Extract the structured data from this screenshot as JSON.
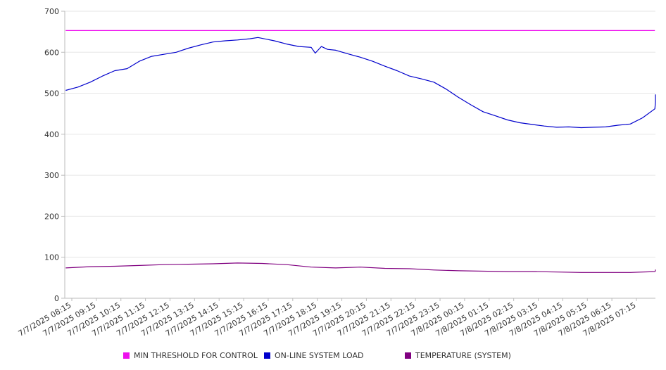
{
  "chart_data": {
    "type": "line",
    "title": "",
    "xlabel": "",
    "ylabel": "",
    "ylim": [
      0,
      700
    ],
    "yticks": [
      0,
      100,
      200,
      300,
      400,
      500,
      600,
      700
    ],
    "grid": true,
    "legend_position": "bottom",
    "x_tick_labels": [
      "7/7/2025 08:15",
      "7/7/2025 09:15",
      "7/7/2025 10:15",
      "7/7/2025 11:15",
      "7/7/2025 12:15",
      "7/7/2025 13:15",
      "7/7/2025 14:15",
      "7/7/2025 15:15",
      "7/7/2025 16:15",
      "7/7/2025 17:15",
      "7/7/2025 18:15",
      "7/7/2025 19:15",
      "7/7/2025 20:15",
      "7/7/2025 21:15",
      "7/7/2025 22:15",
      "7/7/2025 23:15",
      "7/8/2025 00:15",
      "7/8/2025 01:15",
      "7/8/2025 02:15",
      "7/8/2025 03:15",
      "7/8/2025 04:15",
      "7/8/2025 05:15",
      "7/8/2025 06:15",
      "7/8/2025 07:15"
    ],
    "x_start": "7/7/2025 08:00",
    "x_end": "7/8/2025 08:00",
    "series": [
      {
        "name": "MIN THRESHOLD FOR CONTROL",
        "color": "#ee11ee",
        "points": [
          [
            "7/7/2025 08:00",
            653
          ],
          [
            "7/8/2025 08:00",
            653
          ]
        ]
      },
      {
        "name": "ON-LINE SYSTEM LOAD",
        "color": "#0000cc",
        "points": [
          [
            "7/7/2025 08:00",
            507
          ],
          [
            "7/7/2025 08:30",
            515
          ],
          [
            "7/7/2025 09:00",
            527
          ],
          [
            "7/7/2025 09:30",
            542
          ],
          [
            "7/7/2025 10:00",
            555
          ],
          [
            "7/7/2025 10:30",
            560
          ],
          [
            "7/7/2025 11:00",
            578
          ],
          [
            "7/7/2025 11:30",
            590
          ],
          [
            "7/7/2025 12:00",
            595
          ],
          [
            "7/7/2025 12:30",
            600
          ],
          [
            "7/7/2025 13:00",
            610
          ],
          [
            "7/7/2025 13:30",
            618
          ],
          [
            "7/7/2025 14:00",
            625
          ],
          [
            "7/7/2025 14:30",
            628
          ],
          [
            "7/7/2025 15:00",
            630
          ],
          [
            "7/7/2025 15:30",
            633
          ],
          [
            "7/7/2025 15:50",
            636
          ],
          [
            "7/7/2025 16:30",
            628
          ],
          [
            "7/7/2025 17:00",
            620
          ],
          [
            "7/7/2025 17:30",
            614
          ],
          [
            "7/7/2025 18:00",
            612
          ],
          [
            "7/7/2025 18:10",
            598
          ],
          [
            "7/7/2025 18:25",
            614
          ],
          [
            "7/7/2025 18:40",
            607
          ],
          [
            "7/7/2025 19:00",
            605
          ],
          [
            "7/7/2025 19:30",
            596
          ],
          [
            "7/7/2025 20:00",
            588
          ],
          [
            "7/7/2025 20:30",
            578
          ],
          [
            "7/7/2025 21:00",
            566
          ],
          [
            "7/7/2025 21:30",
            555
          ],
          [
            "7/7/2025 22:00",
            542
          ],
          [
            "7/7/2025 22:30",
            535
          ],
          [
            "7/7/2025 23:00",
            527
          ],
          [
            "7/7/2025 23:30",
            510
          ],
          [
            "7/8/2025 00:00",
            490
          ],
          [
            "7/8/2025 00:30",
            472
          ],
          [
            "7/8/2025 01:00",
            455
          ],
          [
            "7/8/2025 01:30",
            445
          ],
          [
            "7/8/2025 02:00",
            435
          ],
          [
            "7/8/2025 02:30",
            428
          ],
          [
            "7/8/2025 03:00",
            424
          ],
          [
            "7/8/2025 03:30",
            420
          ],
          [
            "7/8/2025 04:00",
            417
          ],
          [
            "7/8/2025 04:30",
            418
          ],
          [
            "7/8/2025 05:00",
            416
          ],
          [
            "7/8/2025 05:30",
            417
          ],
          [
            "7/8/2025 06:00",
            418
          ],
          [
            "7/8/2025 06:30",
            422
          ],
          [
            "7/8/2025 07:00",
            425
          ],
          [
            "7/8/2025 07:30",
            440
          ],
          [
            "7/8/2025 08:00",
            462
          ],
          [
            "7/8/2025 08:30",
            478
          ],
          [
            "7/8/2025 09:00",
            488
          ],
          [
            "7/8/2025 09:20",
            497
          ]
        ]
      },
      {
        "name": "TEMPERATURE (SYSTEM)",
        "color": "#800080",
        "points": [
          [
            "7/7/2025 08:00",
            74
          ],
          [
            "7/7/2025 09:00",
            77
          ],
          [
            "7/7/2025 10:00",
            78
          ],
          [
            "7/7/2025 11:00",
            80
          ],
          [
            "7/7/2025 12:00",
            82
          ],
          [
            "7/7/2025 13:00",
            83
          ],
          [
            "7/7/2025 14:00",
            84
          ],
          [
            "7/7/2025 15:00",
            86
          ],
          [
            "7/7/2025 16:00",
            85
          ],
          [
            "7/7/2025 17:00",
            82
          ],
          [
            "7/7/2025 18:00",
            76
          ],
          [
            "7/7/2025 19:00",
            74
          ],
          [
            "7/7/2025 20:00",
            76
          ],
          [
            "7/7/2025 21:00",
            73
          ],
          [
            "7/7/2025 22:00",
            72
          ],
          [
            "7/7/2025 23:00",
            69
          ],
          [
            "7/8/2025 00:00",
            67
          ],
          [
            "7/8/2025 01:00",
            66
          ],
          [
            "7/8/2025 02:00",
            65
          ],
          [
            "7/8/2025 03:00",
            65
          ],
          [
            "7/8/2025 04:00",
            64
          ],
          [
            "7/8/2025 05:00",
            63
          ],
          [
            "7/8/2025 06:00",
            63
          ],
          [
            "7/8/2025 07:00",
            63
          ],
          [
            "7/8/2025 08:00",
            65
          ],
          [
            "7/8/2025 08:30",
            67
          ],
          [
            "7/8/2025 09:20",
            70
          ]
        ]
      }
    ]
  }
}
